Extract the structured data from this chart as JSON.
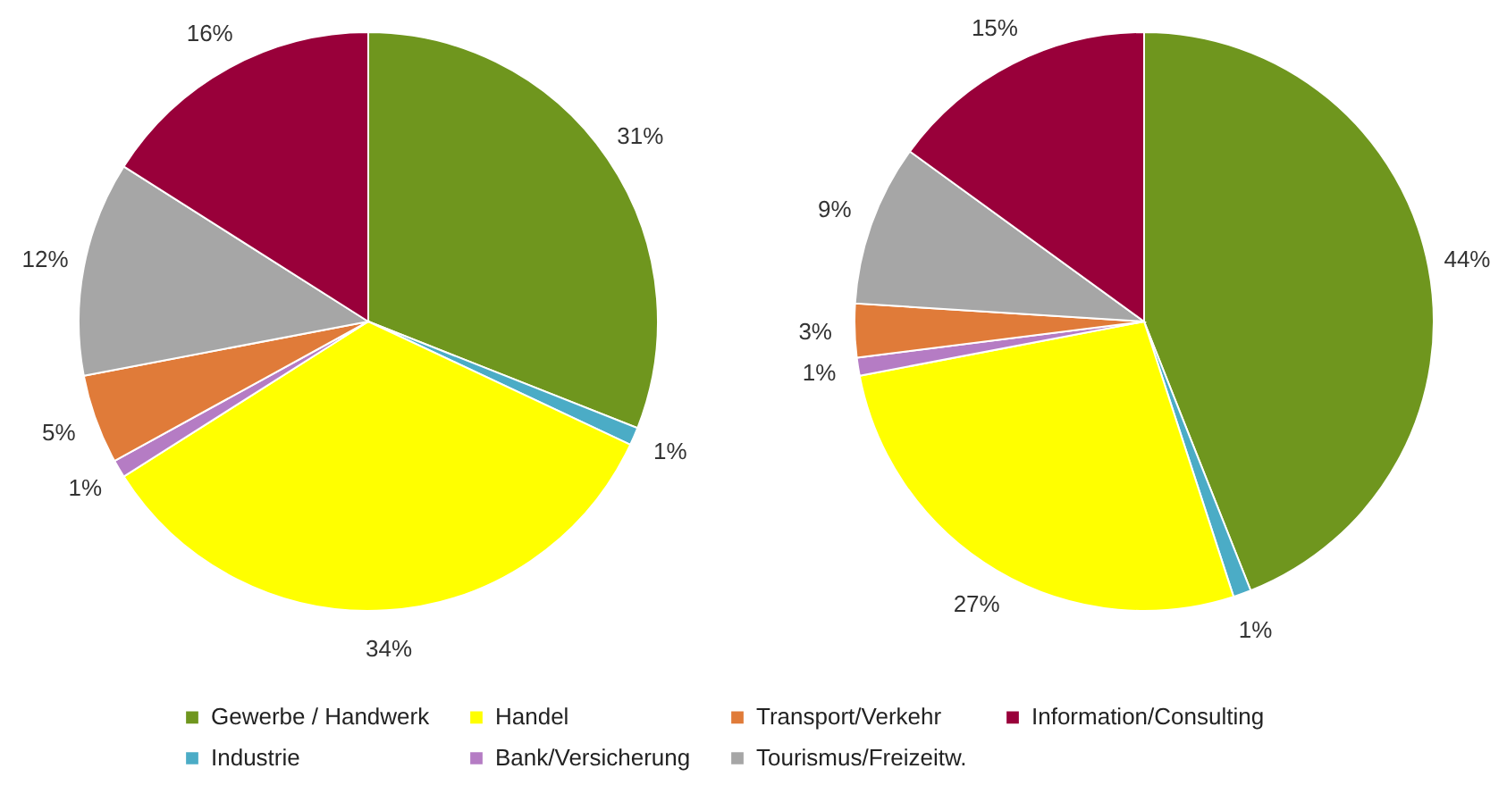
{
  "chart_data": [
    {
      "type": "pie",
      "categories": [
        "Gewerbe / Handwerk",
        "Industrie",
        "Handel",
        "Bank/Versicherung",
        "Transport/Verkehr",
        "Tourismus/Freizeitw.",
        "Information/Consulting"
      ],
      "values": [
        31,
        1,
        34,
        1,
        5,
        12,
        16
      ],
      "value_labels": [
        "31%",
        "1%",
        "34%",
        "1%",
        "5%",
        "12%",
        "16%"
      ],
      "colors": [
        "#6f961e",
        "#4bacc6",
        "#ffff00",
        "#b57cc4",
        "#e07b39",
        "#a6a6a6",
        "#99003a"
      ],
      "legend": "bottom"
    },
    {
      "type": "pie",
      "categories": [
        null,
        null,
        null,
        null,
        null,
        null,
        null
      ],
      "values": [
        44,
        1,
        27,
        1,
        3,
        9,
        15
      ],
      "value_labels": [
        "44%",
        "1%",
        "27%",
        "1%",
        "3%",
        "9%",
        "15%"
      ],
      "colors": [
        "#6f961e",
        "#4bacc6",
        "#ffff00",
        "#b57cc4",
        "#e07b39",
        "#a6a6a6",
        "#99003a"
      ]
    }
  ]
}
